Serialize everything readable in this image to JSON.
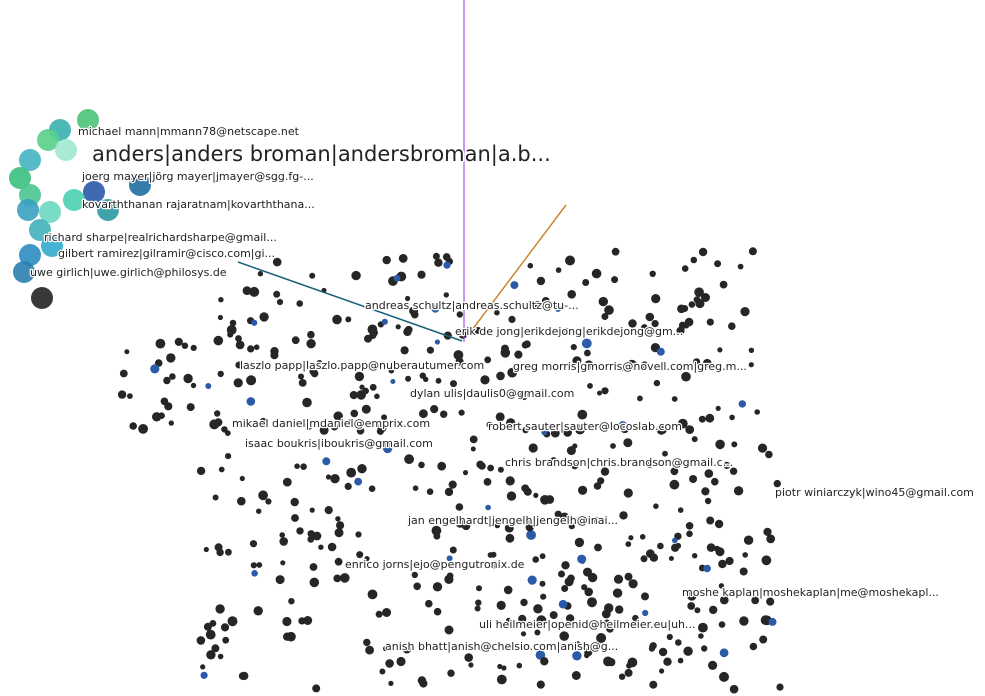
{
  "nodes": [
    {
      "label": "michael mann|mmann78@netscape.net"
    },
    {
      "label": "anders|anders broman|andersbroman|a.b..."
    },
    {
      "label": "joerg mayer|jörg mayer|jmayer@sgg.fg-..."
    },
    {
      "label": "kovarththanan rajaratnam|kovarththana..."
    },
    {
      "label": "richard sharpe|realrichardsharpe@gmail..."
    },
    {
      "label": "gilbert ramirez|gilramir@cisco.com|gi..."
    },
    {
      "label": "uwe girlich|uwe.girlich@philosys.de"
    },
    {
      "label": "andreas schultz|andreas.schultz@tu-..."
    },
    {
      "label": "erik de jong|erikdejong|erikdejong@gm..."
    },
    {
      "label": "laszlo papp|laszlo.papp@nuberautumer.com"
    },
    {
      "label": "greg morris|gmorris@novell.com|greg.m..."
    },
    {
      "label": "dylan ulis|daulis0@gmail.com"
    },
    {
      "label": "mikael daniel|mdaniel@emprix.com"
    },
    {
      "label": "robert sauter|sauter@locoslab.com"
    },
    {
      "label": "isaac boukris|iboukris@gmail.com"
    },
    {
      "label": "chris brandson|chris.brandson@gmail.c..."
    },
    {
      "label": "piotr winiarczyk|wino45@gmail.com"
    },
    {
      "label": "jan engelhardt|jengelh|jengelh@inai..."
    },
    {
      "label": "enrico jorns|ejo@pengutronix.de"
    },
    {
      "label": "moshe kaplan|moshekaplan|me@moshekapl..."
    },
    {
      "label": "uli heilmeier|openid@heilmeier.eu|uh..."
    },
    {
      "label": "anish bhatt|anish@chelsio.com|anish@g..."
    }
  ]
}
